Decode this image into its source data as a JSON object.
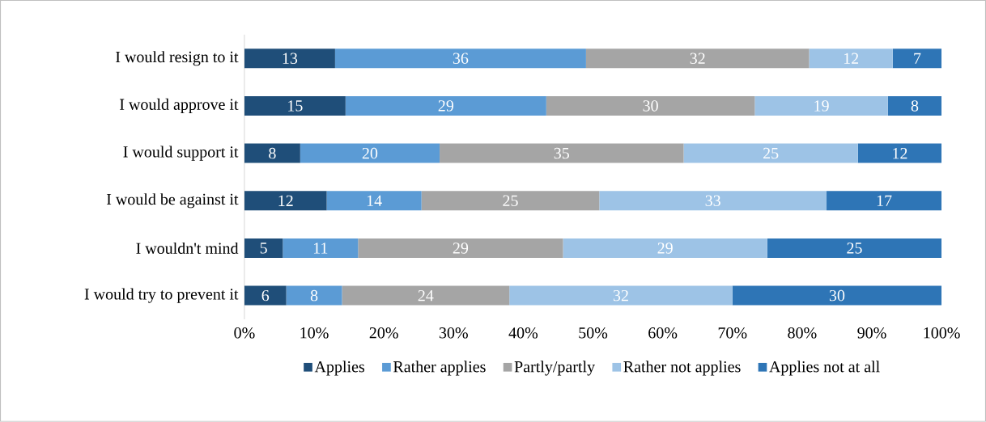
{
  "chart_data": {
    "type": "bar",
    "orientation": "horizontal",
    "stacked": true,
    "legend": "bottom",
    "grid": false,
    "categories": [
      "I would resign to it",
      "I would approve it",
      "I would support it",
      "I would be against it",
      "I wouldn't mind",
      "I would try to prevent it"
    ],
    "series": [
      {
        "name": "Applies",
        "color": "#1f4e79",
        "values": [
          13,
          14.5,
          8,
          11.8,
          5.5,
          6
        ],
        "value_labels": [
          "13",
          "15",
          "8",
          "12",
          "5",
          "6"
        ]
      },
      {
        "name": "Rather applies",
        "color": "#5b9bd5",
        "values": [
          36,
          28.8,
          20,
          13.6,
          10.8,
          8
        ],
        "value_labels": [
          "36",
          "29",
          "20",
          "14",
          "11",
          "8"
        ]
      },
      {
        "name": "Partly/partly",
        "color": "#a5a5a5",
        "values": [
          32,
          29.9,
          35,
          25.5,
          29.4,
          24
        ],
        "value_labels": [
          "32",
          "30",
          "35",
          "25",
          "29",
          "24"
        ]
      },
      {
        "name": "Rather not applies",
        "color": "#9dc3e6",
        "values": [
          12,
          19.1,
          25,
          32.6,
          29.3,
          32
        ],
        "value_labels": [
          "12",
          "19",
          "25",
          "33",
          "29",
          "32"
        ]
      },
      {
        "name": "Applies not at all",
        "color": "#2e75b6",
        "values": [
          7,
          7.7,
          12,
          16.5,
          25,
          30
        ],
        "value_labels": [
          "7",
          "8",
          "12",
          "17",
          "25",
          "30"
        ]
      }
    ],
    "xlim": [
      0,
      100
    ],
    "xticks": [
      {
        "value": 0,
        "label": "0%"
      },
      {
        "value": 10,
        "label": "10%"
      },
      {
        "value": 20,
        "label": "20%"
      },
      {
        "value": 30,
        "label": "30%"
      },
      {
        "value": 40,
        "label": "40%"
      },
      {
        "value": 50,
        "label": "50%"
      },
      {
        "value": 60,
        "label": "60%"
      },
      {
        "value": 70,
        "label": "70%"
      },
      {
        "value": 80,
        "label": "80%"
      },
      {
        "value": 90,
        "label": "90%"
      },
      {
        "value": 100,
        "label": "100%"
      }
    ]
  }
}
